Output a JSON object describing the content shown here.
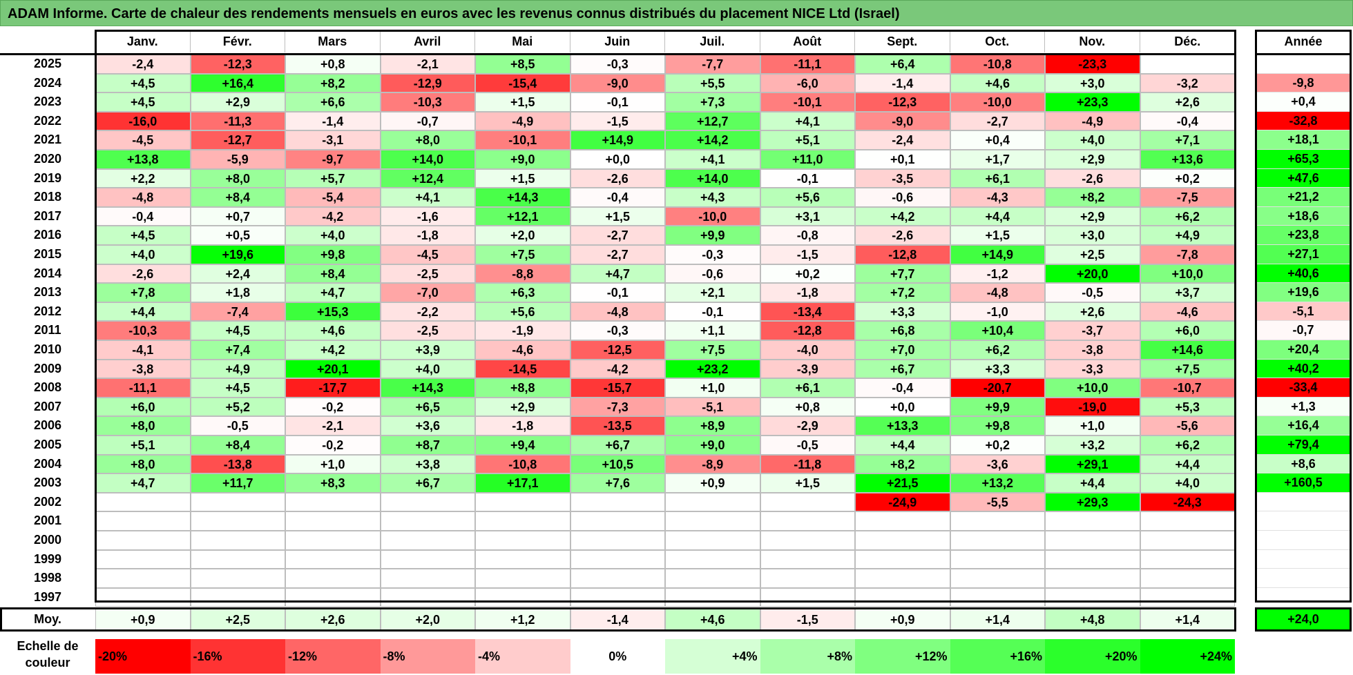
{
  "title": "ADAM Informe. Carte de chaleur des rendements mensuels en euros avec les revenus connus distribués du placement NICE Ltd (Israel)",
  "chart_data": {
    "type": "heatmap",
    "title": "ADAM Informe. Carte de chaleur des rendements mensuels en euros avec les revenus connus distribués du placement NICE Ltd (Israel)",
    "months": [
      "Janv.",
      "Févr.",
      "Mars",
      "Avril",
      "Mai",
      "Juin",
      "Juil.",
      "Août",
      "Sept.",
      "Oct.",
      "Nov.",
      "Déc."
    ],
    "year_column_label": "Année",
    "average_row_label": "Moy.",
    "rows": [
      {
        "year": "2025",
        "values": [
          -2.4,
          -12.3,
          0.8,
          -2.1,
          8.5,
          -0.3,
          -7.7,
          -11.1,
          6.4,
          -10.8,
          -23.3,
          null
        ],
        "annual": null
      },
      {
        "year": "2024",
        "values": [
          4.5,
          16.4,
          8.2,
          -12.9,
          -15.4,
          -9.0,
          5.5,
          -6.0,
          -1.4,
          4.6,
          3.0,
          -3.2
        ],
        "annual": -9.8
      },
      {
        "year": "2023",
        "values": [
          4.5,
          2.9,
          6.6,
          -10.3,
          1.5,
          -0.1,
          7.3,
          -10.1,
          -12.3,
          -10.0,
          23.3,
          2.6
        ],
        "annual": 0.4
      },
      {
        "year": "2022",
        "values": [
          -16.0,
          -11.3,
          -1.4,
          -0.7,
          -4.9,
          -1.5,
          12.7,
          4.1,
          -9.0,
          -2.7,
          -4.9,
          -0.4
        ],
        "annual": -32.8
      },
      {
        "year": "2021",
        "values": [
          -4.5,
          -12.7,
          -3.1,
          8.0,
          -10.1,
          14.9,
          14.2,
          5.1,
          -2.4,
          0.4,
          4.0,
          7.1
        ],
        "annual": 18.1
      },
      {
        "year": "2020",
        "values": [
          13.8,
          -5.9,
          -9.7,
          14.0,
          9.0,
          0.0,
          4.1,
          11.0,
          0.1,
          1.7,
          2.9,
          13.6
        ],
        "annual": 65.3
      },
      {
        "year": "2019",
        "values": [
          2.2,
          8.0,
          5.7,
          12.4,
          1.5,
          -2.6,
          14.0,
          -0.1,
          -3.5,
          6.1,
          -2.6,
          0.2
        ],
        "annual": 47.6
      },
      {
        "year": "2018",
        "values": [
          -4.8,
          8.4,
          -5.4,
          4.1,
          14.3,
          -0.4,
          4.3,
          5.6,
          -0.6,
          -4.3,
          8.2,
          -7.5
        ],
        "annual": 21.2
      },
      {
        "year": "2017",
        "values": [
          -0.4,
          0.7,
          -4.2,
          -1.6,
          12.1,
          1.5,
          -10.0,
          3.1,
          4.2,
          4.4,
          2.9,
          6.2
        ],
        "annual": 18.6
      },
      {
        "year": "2016",
        "values": [
          4.5,
          0.5,
          4.0,
          -1.8,
          2.0,
          -2.7,
          9.9,
          -0.8,
          -2.6,
          1.5,
          3.0,
          4.9
        ],
        "annual": 23.8
      },
      {
        "year": "2015",
        "values": [
          4.0,
          19.6,
          9.8,
          -4.5,
          7.5,
          -2.7,
          -0.3,
          -1.5,
          -12.8,
          14.9,
          2.5,
          -7.8
        ],
        "annual": 27.1
      },
      {
        "year": "2014",
        "values": [
          -2.6,
          2.4,
          8.4,
          -2.5,
          -8.8,
          4.7,
          -0.6,
          0.2,
          7.7,
          -1.2,
          20.0,
          10.0
        ],
        "annual": 40.6
      },
      {
        "year": "2013",
        "values": [
          7.8,
          1.8,
          4.7,
          -7.0,
          6.3,
          -0.1,
          2.1,
          -1.8,
          7.2,
          -4.8,
          -0.5,
          3.7
        ],
        "annual": 19.6
      },
      {
        "year": "2012",
        "values": [
          4.4,
          -7.4,
          15.3,
          -2.2,
          5.6,
          -4.8,
          -0.1,
          -13.4,
          3.3,
          -1.0,
          2.6,
          -4.6
        ],
        "annual": -5.1
      },
      {
        "year": "2011",
        "values": [
          -10.3,
          4.5,
          4.6,
          -2.5,
          -1.9,
          -0.3,
          1.1,
          -12.8,
          6.8,
          10.4,
          -3.7,
          6.0
        ],
        "annual": -0.7
      },
      {
        "year": "2010",
        "values": [
          -4.1,
          7.4,
          4.2,
          3.9,
          -4.6,
          -12.5,
          7.5,
          -4.0,
          7.0,
          6.2,
          -3.8,
          14.6
        ],
        "annual": 20.4
      },
      {
        "year": "2009",
        "values": [
          -3.8,
          4.9,
          20.1,
          4.0,
          -14.5,
          -4.2,
          23.2,
          -3.9,
          6.7,
          3.3,
          -3.3,
          7.5
        ],
        "annual": 40.2
      },
      {
        "year": "2008",
        "values": [
          -11.1,
          4.5,
          -17.7,
          14.3,
          8.8,
          -15.7,
          1.0,
          6.1,
          -0.4,
          -20.7,
          10.0,
          -10.7
        ],
        "annual": -33.4
      },
      {
        "year": "2007",
        "values": [
          6.0,
          5.2,
          -0.2,
          6.5,
          2.9,
          -7.3,
          -5.1,
          0.8,
          0.0,
          9.9,
          -19.0,
          5.3
        ],
        "annual": 1.3
      },
      {
        "year": "2006",
        "values": [
          8.0,
          -0.5,
          -2.1,
          3.6,
          -1.8,
          -13.5,
          8.9,
          -2.9,
          13.3,
          9.8,
          1.0,
          -5.6
        ],
        "annual": 16.4
      },
      {
        "year": "2005",
        "values": [
          5.1,
          8.4,
          -0.2,
          8.7,
          9.4,
          6.7,
          9.0,
          -0.5,
          4.4,
          0.2,
          3.2,
          6.2
        ],
        "annual": 79.4
      },
      {
        "year": "2004",
        "values": [
          8.0,
          -13.8,
          1.0,
          3.8,
          -10.8,
          10.5,
          -8.9,
          -11.8,
          8.2,
          -3.6,
          29.1,
          4.4
        ],
        "annual": 8.6
      },
      {
        "year": "2003",
        "values": [
          4.7,
          11.7,
          8.3,
          6.7,
          17.1,
          7.6,
          0.9,
          1.5,
          21.5,
          13.2,
          4.4,
          4.0
        ],
        "annual": 160.5
      },
      {
        "year": "2002",
        "values": [
          null,
          null,
          null,
          null,
          null,
          null,
          null,
          null,
          -24.9,
          -5.5,
          29.3,
          -24.3
        ],
        "annual": null
      },
      {
        "year": "2001",
        "values": [
          null,
          null,
          null,
          null,
          null,
          null,
          null,
          null,
          null,
          null,
          null,
          null
        ],
        "annual": null
      },
      {
        "year": "2000",
        "values": [
          null,
          null,
          null,
          null,
          null,
          null,
          null,
          null,
          null,
          null,
          null,
          null
        ],
        "annual": null
      },
      {
        "year": "1999",
        "values": [
          null,
          null,
          null,
          null,
          null,
          null,
          null,
          null,
          null,
          null,
          null,
          null
        ],
        "annual": null
      },
      {
        "year": "1998",
        "values": [
          null,
          null,
          null,
          null,
          null,
          null,
          null,
          null,
          null,
          null,
          null,
          null
        ],
        "annual": null
      },
      {
        "year": "1997",
        "values": [
          null,
          null,
          null,
          null,
          null,
          null,
          null,
          null,
          null,
          null,
          null,
          null
        ],
        "annual": null
      }
    ],
    "average": {
      "values": [
        0.9,
        2.5,
        2.6,
        2.0,
        1.2,
        -1.4,
        4.6,
        -1.5,
        0.9,
        1.4,
        4.8,
        1.4
      ],
      "annual": 24.0
    },
    "color_scale": {
      "label": "Echelle de couleur",
      "stops": [
        {
          "label": "-20%",
          "value": -20
        },
        {
          "label": "-16%",
          "value": -16
        },
        {
          "label": "-12%",
          "value": -12
        },
        {
          "label": "-8%",
          "value": -8
        },
        {
          "label": "-4%",
          "value": -4
        },
        {
          "label": "0%",
          "value": 0
        },
        {
          "label": "+4%",
          "value": 4
        },
        {
          "label": "+8%",
          "value": 8
        },
        {
          "label": "+12%",
          "value": 12
        },
        {
          "label": "+16%",
          "value": 16
        },
        {
          "label": "+20%",
          "value": 20
        },
        {
          "label": "+24%",
          "value": 24
        }
      ],
      "negative_color": "#ff0000",
      "neutral_color": "#ffffff",
      "positive_color": "#00ff00"
    }
  }
}
